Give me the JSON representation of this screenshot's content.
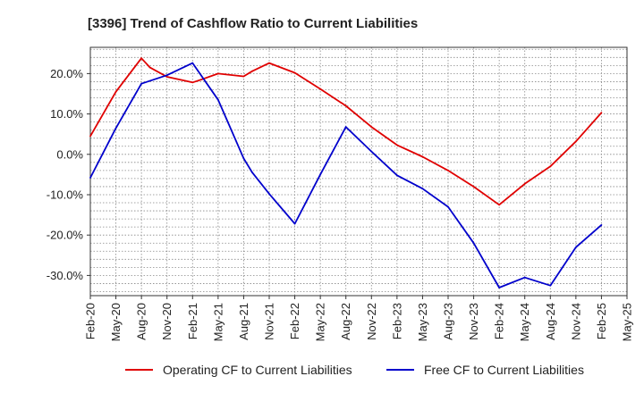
{
  "chart_data": {
    "type": "line",
    "title": "[3396]  Trend of Cashflow Ratio to Current Liabilities",
    "xlabel": "",
    "ylabel": "",
    "ylim": [
      -35,
      26.5
    ],
    "yticks": [
      20,
      10,
      0,
      -10,
      -20,
      -30
    ],
    "ytick_labels": [
      "20.0%",
      "10.0%",
      "0.0%",
      "-10.0%",
      "-20.0%",
      "-30.0%"
    ],
    "x_tick_labels": [
      "Feb-20",
      "May-20",
      "Aug-20",
      "Nov-20",
      "Feb-21",
      "May-21",
      "Aug-21",
      "Nov-21",
      "Feb-22",
      "May-22",
      "Aug-22",
      "Nov-22",
      "Feb-23",
      "May-23",
      "Aug-23",
      "Nov-23",
      "Feb-24",
      "May-24",
      "Aug-24",
      "Nov-24",
      "Feb-25",
      "May-25"
    ],
    "grid": true,
    "legend_position": "bottom",
    "series": [
      {
        "name": "Operating CF to Current Liabilities",
        "color": "#e00000",
        "x": [
          "Feb-20",
          "May-20",
          "Aug-20",
          "Sep-20",
          "Nov-20",
          "Feb-21",
          "Mar-21",
          "May-21",
          "Aug-21",
          "Sep-21",
          "Nov-21",
          "Feb-22",
          "May-22",
          "Aug-22",
          "Nov-22",
          "Feb-23",
          "May-23",
          "Aug-23",
          "Nov-23",
          "Feb-24",
          "May-24",
          "Aug-24",
          "Nov-24",
          "Feb-25"
        ],
        "values": [
          4.5,
          15.5,
          23.8,
          21.5,
          19.2,
          17.8,
          18.5,
          20.0,
          19.3,
          20.6,
          22.6,
          20.2,
          16.2,
          12.0,
          6.8,
          2.3,
          -0.6,
          -4.0,
          -8.0,
          -12.5,
          -7.3,
          -3.0,
          3.2,
          10.3
        ]
      },
      {
        "name": "Free CF to Current Liabilities",
        "color": "#0000cc",
        "x": [
          "Feb-20",
          "May-20",
          "Aug-20",
          "Nov-20",
          "Feb-21",
          "May-21",
          "Aug-21",
          "Sep-21",
          "Nov-21",
          "Feb-22",
          "May-22",
          "Aug-22",
          "Nov-22",
          "Feb-23",
          "May-23",
          "Aug-23",
          "Nov-23",
          "Feb-24",
          "May-24",
          "Aug-24",
          "Nov-24",
          "Feb-25"
        ],
        "values": [
          -5.8,
          6.5,
          17.5,
          19.6,
          22.6,
          13.5,
          -1.0,
          -4.5,
          -9.8,
          -17.2,
          -5.0,
          6.8,
          0.7,
          -5.2,
          -8.5,
          -13.0,
          -22.0,
          -33.0,
          -30.5,
          -32.5,
          -23.0,
          -17.5
        ]
      }
    ]
  }
}
